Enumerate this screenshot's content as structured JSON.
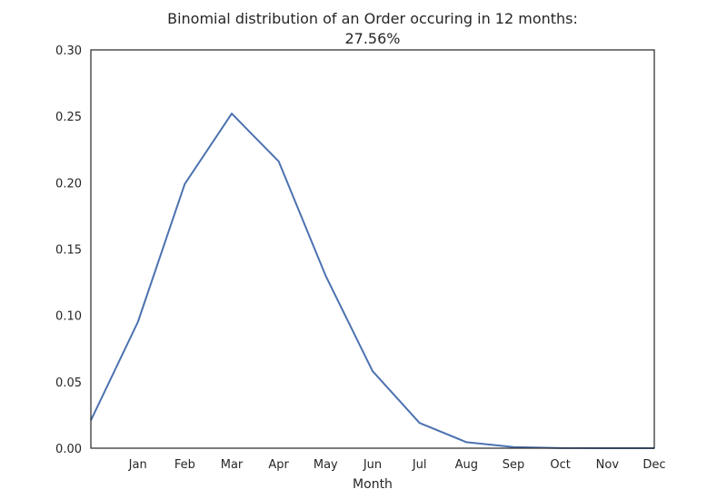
{
  "chart_data": {
    "type": "line",
    "title": "Binomial distribution of an Order occuring in 12 months:",
    "subtitle": "27.56%",
    "xlabel": "Month",
    "ylabel": "",
    "x": [
      0,
      1,
      2,
      3,
      4,
      5,
      6,
      7,
      8,
      9,
      10,
      11,
      12
    ],
    "x_tick_labels": [
      "Jan",
      "Feb",
      "Mar",
      "Apr",
      "May",
      "Jun",
      "Jul",
      "Aug",
      "Sep",
      "Oct",
      "Nov",
      "Dec"
    ],
    "x_tick_positions": [
      1,
      2,
      3,
      4,
      5,
      6,
      7,
      8,
      9,
      10,
      11,
      12
    ],
    "xlim": [
      0,
      12
    ],
    "y_ticks": [
      "0.00",
      "0.05",
      "0.10",
      "0.15",
      "0.20",
      "0.25",
      "0.30"
    ],
    "ylim": [
      0,
      0.3
    ],
    "grid": false,
    "series": [
      {
        "values": [
          0.021,
          0.095,
          0.199,
          0.252,
          0.216,
          0.13,
          0.058,
          0.019,
          0.0045,
          0.0008,
          0.0001,
          0.0,
          0.0
        ],
        "color": "#4c72b0"
      }
    ]
  }
}
